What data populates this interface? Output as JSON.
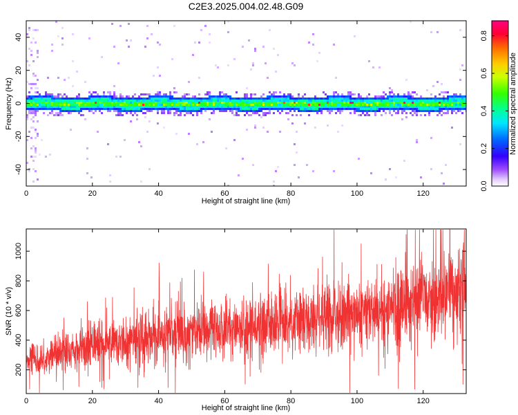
{
  "figure": {
    "title": "C2E3.2025.004.02.48.G09"
  },
  "chart_data": [
    {
      "type": "heatmap",
      "xlabel": "Height of straight line (km)",
      "ylabel": "Frequency (Hz)",
      "xlim": [
        0,
        133
      ],
      "ylim": [
        -50,
        50
      ],
      "x_ticks": [
        0,
        20,
        40,
        60,
        80,
        100,
        120
      ],
      "y_ticks": [
        -40,
        -20,
        0,
        20,
        40
      ],
      "colorbar": {
        "label": "Normalized spectral amplitude",
        "range": [
          0,
          0.88
        ],
        "ticks": [
          0.0,
          0.2,
          0.4,
          0.6,
          0.8
        ],
        "colormap": "rainbow"
      },
      "signal_band": {
        "center_hz": 0,
        "half_width_hz": 3
      }
    },
    {
      "type": "line",
      "xlabel": "Height of straight line (km)",
      "ylabel": "SNR (10 * v/v)",
      "xlim": [
        0,
        133
      ],
      "ylim": [
        40,
        1150
      ],
      "x_ticks": [
        0,
        20,
        40,
        60,
        80,
        100,
        120
      ],
      "y_ticks": [
        200,
        400,
        600,
        800,
        1000
      ],
      "series": [
        {
          "color": "#f03232",
          "trend": [
            [
              0,
              280
            ],
            [
              5,
              270
            ],
            [
              10,
              310
            ],
            [
              20,
              370
            ],
            [
              30,
              400
            ],
            [
              40,
              430
            ],
            [
              50,
              450
            ],
            [
              60,
              470
            ],
            [
              70,
              490
            ],
            [
              80,
              520
            ],
            [
              90,
              550
            ],
            [
              100,
              580
            ],
            [
              110,
              620
            ],
            [
              120,
              670
            ],
            [
              133,
              740
            ]
          ]
        }
      ]
    }
  ]
}
